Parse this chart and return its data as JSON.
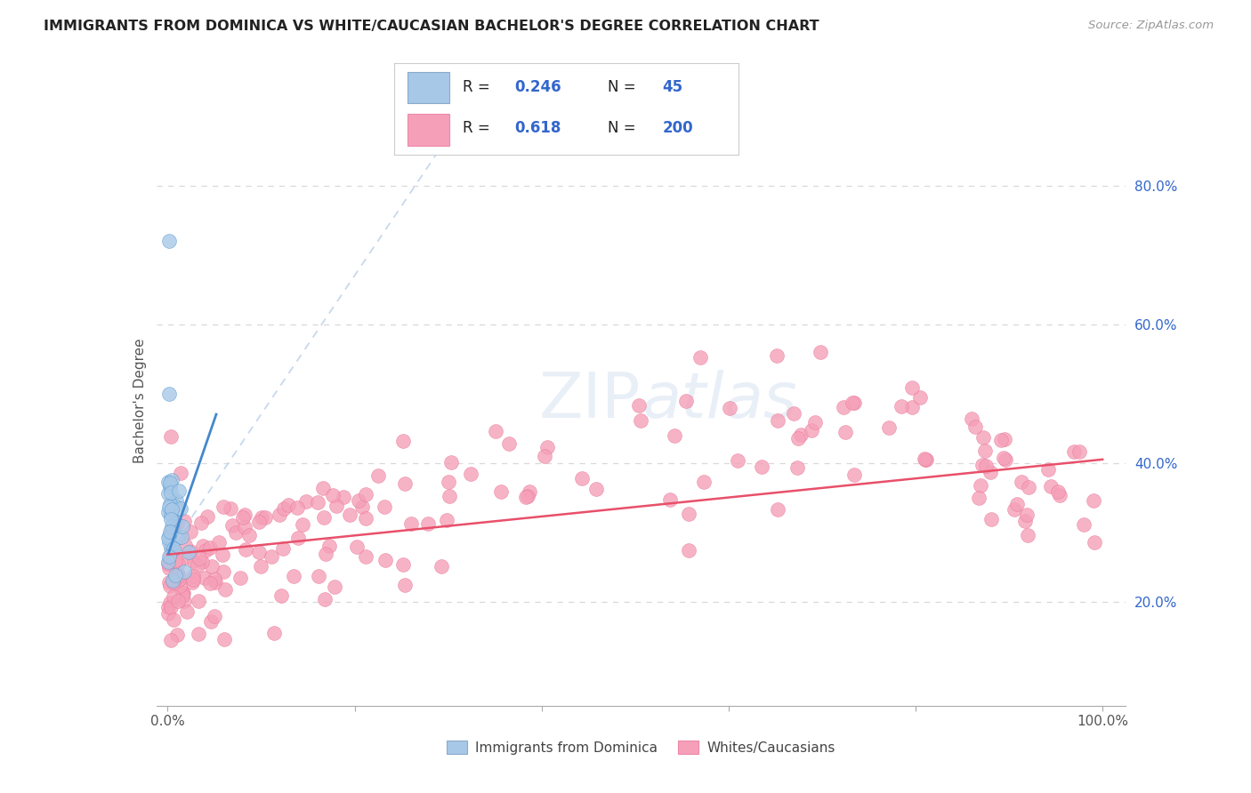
{
  "title": "IMMIGRANTS FROM DOMINICA VS WHITE/CAUCASIAN BACHELOR'S DEGREE CORRELATION CHART",
  "source": "Source: ZipAtlas.com",
  "ylabel": "Bachelor's Degree",
  "watermark": "ZIPAtlas",
  "legend": {
    "blue_r": "0.246",
    "blue_n": "45",
    "pink_r": "0.618",
    "pink_n": "200"
  },
  "scatter_blue_color": "#a8c8e8",
  "scatter_pink_color": "#f5a0b8",
  "line_blue_color": "#4488cc",
  "line_pink_color": "#e8506a",
  "dashed_blue_color": "#b8d0e8",
  "background_color": "#ffffff",
  "grid_color": "#d8d8d8",
  "title_color": "#222222",
  "legend_color": "#3366cc",
  "right_label_color": "#3366cc",
  "bottom_label_color": "#444444"
}
